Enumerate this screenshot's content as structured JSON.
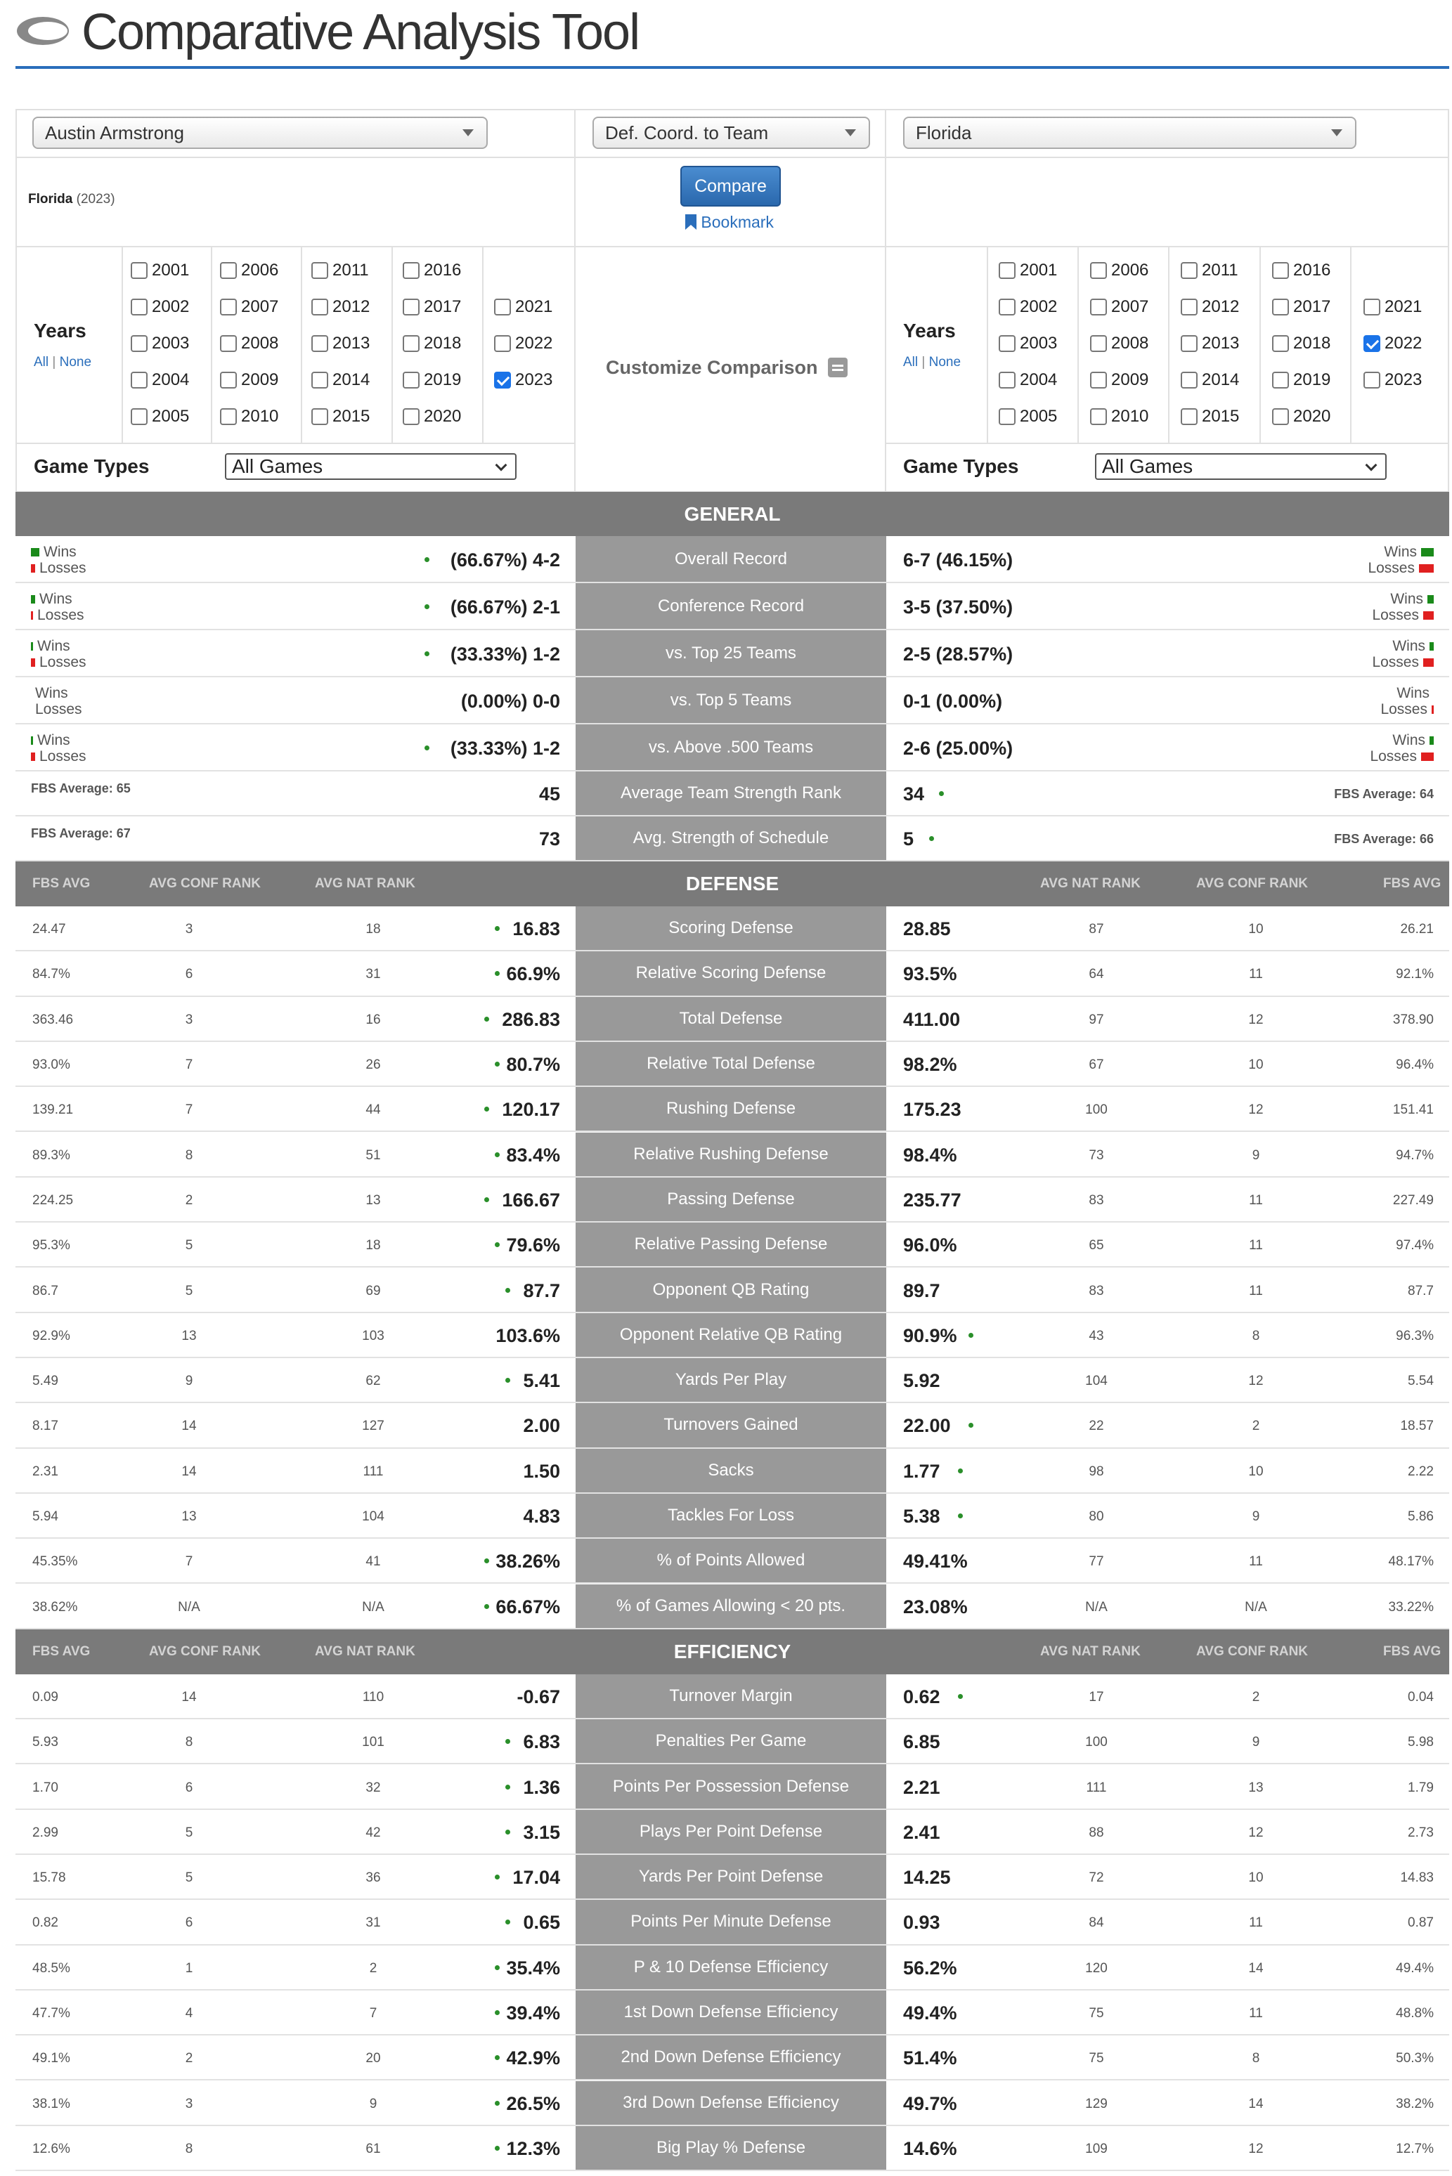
{
  "app": {
    "title": "Comparative Analysis Tool"
  },
  "selectors": {
    "left": "Austin Armstrong",
    "middle": "Def. Coord. to Team",
    "right": "Florida"
  },
  "left_context": {
    "team": "Florida",
    "year": "(2023)"
  },
  "actions": {
    "compare": "Compare",
    "bookmark": "Bookmark"
  },
  "years_panel": {
    "label": "Years",
    "all": "All",
    "none": "None",
    "customize": "Customize Comparison",
    "game_types_label": "Game Types",
    "game_types_value": "All Games"
  },
  "years": [
    "2001",
    "2002",
    "2003",
    "2004",
    "2005",
    "2006",
    "2007",
    "2008",
    "2009",
    "2010",
    "2011",
    "2012",
    "2013",
    "2014",
    "2015",
    "2016",
    "2017",
    "2018",
    "2019",
    "2020",
    "2021",
    "2022",
    "2023"
  ],
  "left_checked": [
    "2023"
  ],
  "right_checked": [
    "2022"
  ],
  "colors": {
    "accent": "#2a6ebb",
    "win": "#1a8a1a",
    "loss": "#e02020",
    "section": "#7a7a7a",
    "mid": "#999999"
  },
  "general": {
    "title": "GENERAL",
    "wins": "Wins",
    "losses": "Losses",
    "records": [
      {
        "label": "Overall Record",
        "left": "(66.67%) 4-2",
        "right": "6-7 (46.15%)",
        "lw": 4,
        "ll": 2,
        "rw": 6,
        "rl": 7,
        "ld": true,
        "rd": false
      },
      {
        "label": "Conference Record",
        "left": "(66.67%) 2-1",
        "right": "3-5 (37.50%)",
        "lw": 2,
        "ll": 1,
        "rw": 3,
        "rl": 5,
        "ld": true,
        "rd": false
      },
      {
        "label": "vs. Top 25 Teams",
        "left": "(33.33%) 1-2",
        "right": "2-5 (28.57%)",
        "lw": 1,
        "ll": 2,
        "rw": 2,
        "rl": 5,
        "ld": true,
        "rd": false
      },
      {
        "label": "vs. Top 5 Teams",
        "left": "(0.00%) 0-0",
        "right": "0-1 (0.00%)",
        "lw": 0,
        "ll": 0,
        "rw": 0,
        "rl": 1,
        "ld": false,
        "rd": false
      },
      {
        "label": "vs. Above .500 Teams",
        "left": "(33.33%) 1-2",
        "right": "2-6 (25.00%)",
        "lw": 1,
        "ll": 2,
        "rw": 2,
        "rl": 6,
        "ld": true,
        "rd": false
      }
    ],
    "strength": [
      {
        "label": "Average Team Strength Rank",
        "left": "45",
        "right": "34",
        "lfbs": "FBS Average: 65",
        "rfbs": "FBS Average: 64",
        "ld": false,
        "rd": true
      },
      {
        "label": "Avg. Strength of Schedule",
        "left": "73",
        "right": "5",
        "lfbs": "FBS Average: 67",
        "rfbs": "FBS Average: 66",
        "ld": false,
        "rd": true
      }
    ]
  },
  "col_heads": {
    "fbs": "FBS AVG",
    "conf": "AVG CONF RANK",
    "nat": "AVG NAT RANK"
  },
  "defense": {
    "title": "DEFENSE",
    "rows": [
      {
        "label": "Scoring Defense",
        "lf": "24.47",
        "lc": "3",
        "ln": "18",
        "lv": "16.83",
        "rv": "28.85",
        "rn": "87",
        "rc": "10",
        "rf": "26.21",
        "ld": true,
        "rd": false
      },
      {
        "label": "Relative Scoring Defense",
        "lf": "84.7%",
        "lc": "6",
        "ln": "31",
        "lv": "66.9%",
        "rv": "93.5%",
        "rn": "64",
        "rc": "11",
        "rf": "92.1%",
        "ld": true,
        "rd": false
      },
      {
        "label": "Total Defense",
        "lf": "363.46",
        "lc": "3",
        "ln": "16",
        "lv": "286.83",
        "rv": "411.00",
        "rn": "97",
        "rc": "12",
        "rf": "378.90",
        "ld": true,
        "rd": false
      },
      {
        "label": "Relative Total Defense",
        "lf": "93.0%",
        "lc": "7",
        "ln": "26",
        "lv": "80.7%",
        "rv": "98.2%",
        "rn": "67",
        "rc": "10",
        "rf": "96.4%",
        "ld": true,
        "rd": false
      },
      {
        "label": "Rushing Defense",
        "lf": "139.21",
        "lc": "7",
        "ln": "44",
        "lv": "120.17",
        "rv": "175.23",
        "rn": "100",
        "rc": "12",
        "rf": "151.41",
        "ld": true,
        "rd": false
      },
      {
        "label": "Relative Rushing Defense",
        "lf": "89.3%",
        "lc": "8",
        "ln": "51",
        "lv": "83.4%",
        "rv": "98.4%",
        "rn": "73",
        "rc": "9",
        "rf": "94.7%",
        "ld": true,
        "rd": false
      },
      {
        "label": "Passing Defense",
        "lf": "224.25",
        "lc": "2",
        "ln": "13",
        "lv": "166.67",
        "rv": "235.77",
        "rn": "83",
        "rc": "11",
        "rf": "227.49",
        "ld": true,
        "rd": false
      },
      {
        "label": "Relative Passing Defense",
        "lf": "95.3%",
        "lc": "5",
        "ln": "18",
        "lv": "79.6%",
        "rv": "96.0%",
        "rn": "65",
        "rc": "11",
        "rf": "97.4%",
        "ld": true,
        "rd": false
      },
      {
        "label": "Opponent QB Rating",
        "lf": "86.7",
        "lc": "5",
        "ln": "69",
        "lv": "87.7",
        "rv": "89.7",
        "rn": "83",
        "rc": "11",
        "rf": "87.7",
        "ld": true,
        "rd": false
      },
      {
        "label": "Opponent Relative QB Rating",
        "lf": "92.9%",
        "lc": "13",
        "ln": "103",
        "lv": "103.6%",
        "rv": "90.9%",
        "rn": "43",
        "rc": "8",
        "rf": "96.3%",
        "ld": false,
        "rd": true
      },
      {
        "label": "Yards Per Play",
        "lf": "5.49",
        "lc": "9",
        "ln": "62",
        "lv": "5.41",
        "rv": "5.92",
        "rn": "104",
        "rc": "12",
        "rf": "5.54",
        "ld": true,
        "rd": false
      },
      {
        "label": "Turnovers Gained",
        "lf": "8.17",
        "lc": "14",
        "ln": "127",
        "lv": "2.00",
        "rv": "22.00",
        "rn": "22",
        "rc": "2",
        "rf": "18.57",
        "ld": false,
        "rd": true
      },
      {
        "label": "Sacks",
        "lf": "2.31",
        "lc": "14",
        "ln": "111",
        "lv": "1.50",
        "rv": "1.77",
        "rn": "98",
        "rc": "10",
        "rf": "2.22",
        "ld": false,
        "rd": true
      },
      {
        "label": "Tackles For Loss",
        "lf": "5.94",
        "lc": "13",
        "ln": "104",
        "lv": "4.83",
        "rv": "5.38",
        "rn": "80",
        "rc": "9",
        "rf": "5.86",
        "ld": false,
        "rd": true
      },
      {
        "label": "% of Points Allowed",
        "lf": "45.35%",
        "lc": "7",
        "ln": "41",
        "lv": "38.26%",
        "rv": "49.41%",
        "rn": "77",
        "rc": "11",
        "rf": "48.17%",
        "ld": true,
        "rd": false
      },
      {
        "label": "% of Games Allowing < 20 pts.",
        "lf": "38.62%",
        "lc": "N/A",
        "ln": "N/A",
        "lv": "66.67%",
        "rv": "23.08%",
        "rn": "N/A",
        "rc": "N/A",
        "rf": "33.22%",
        "ld": true,
        "rd": false
      }
    ]
  },
  "efficiency": {
    "title": "EFFICIENCY",
    "rows": [
      {
        "label": "Turnover Margin",
        "lf": "0.09",
        "lc": "14",
        "ln": "110",
        "lv": "-0.67",
        "rv": "0.62",
        "rn": "17",
        "rc": "2",
        "rf": "0.04",
        "ld": false,
        "rd": true
      },
      {
        "label": "Penalties Per Game",
        "lf": "5.93",
        "lc": "8",
        "ln": "101",
        "lv": "6.83",
        "rv": "6.85",
        "rn": "100",
        "rc": "9",
        "rf": "5.98",
        "ld": true,
        "rd": false
      },
      {
        "label": "Points Per Possession Defense",
        "lf": "1.70",
        "lc": "6",
        "ln": "32",
        "lv": "1.36",
        "rv": "2.21",
        "rn": "111",
        "rc": "13",
        "rf": "1.79",
        "ld": true,
        "rd": false
      },
      {
        "label": "Plays Per Point Defense",
        "lf": "2.99",
        "lc": "5",
        "ln": "42",
        "lv": "3.15",
        "rv": "2.41",
        "rn": "88",
        "rc": "12",
        "rf": "2.73",
        "ld": true,
        "rd": false
      },
      {
        "label": "Yards Per Point Defense",
        "lf": "15.78",
        "lc": "5",
        "ln": "36",
        "lv": "17.04",
        "rv": "14.25",
        "rn": "72",
        "rc": "10",
        "rf": "14.83",
        "ld": true,
        "rd": false
      },
      {
        "label": "Points Per Minute Defense",
        "lf": "0.82",
        "lc": "6",
        "ln": "31",
        "lv": "0.65",
        "rv": "0.93",
        "rn": "84",
        "rc": "11",
        "rf": "0.87",
        "ld": true,
        "rd": false
      },
      {
        "label": "P & 10 Defense Efficiency",
        "lf": "48.5%",
        "lc": "1",
        "ln": "2",
        "lv": "35.4%",
        "rv": "56.2%",
        "rn": "120",
        "rc": "14",
        "rf": "49.4%",
        "ld": true,
        "rd": false
      },
      {
        "label": "1st Down Defense Efficiency",
        "lf": "47.7%",
        "lc": "4",
        "ln": "7",
        "lv": "39.4%",
        "rv": "49.4%",
        "rn": "75",
        "rc": "11",
        "rf": "48.8%",
        "ld": true,
        "rd": false
      },
      {
        "label": "2nd Down Defense Efficiency",
        "lf": "49.1%",
        "lc": "2",
        "ln": "20",
        "lv": "42.9%",
        "rv": "51.4%",
        "rn": "75",
        "rc": "8",
        "rf": "50.3%",
        "ld": true,
        "rd": false
      },
      {
        "label": "3rd Down Defense Efficiency",
        "lf": "38.1%",
        "lc": "3",
        "ln": "9",
        "lv": "26.5%",
        "rv": "49.7%",
        "rn": "129",
        "rc": "14",
        "rf": "38.2%",
        "ld": true,
        "rd": false
      },
      {
        "label": "Big Play % Defense",
        "lf": "12.6%",
        "lc": "8",
        "ln": "61",
        "lv": "12.3%",
        "rv": "14.6%",
        "rn": "109",
        "rc": "12",
        "rf": "12.7%",
        "ld": true,
        "rd": false
      }
    ]
  }
}
